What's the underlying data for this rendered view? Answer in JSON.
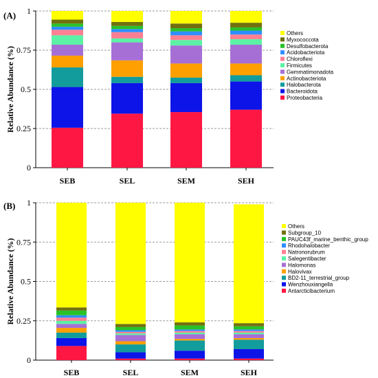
{
  "chart_data": [
    {
      "type": "bar",
      "stacked": true,
      "panel_label": "(A)",
      "ylabel": "Relative Abundance (%)",
      "categories": [
        "SEB",
        "SEL",
        "SEM",
        "SEH"
      ],
      "ylim": [
        0,
        1
      ],
      "yticks": [
        "0",
        "0.25",
        "0.5",
        "0.75",
        "1"
      ],
      "ytick_values": [
        0,
        0.25,
        0.5,
        0.75,
        1
      ],
      "grid": "dashed horizontal",
      "legend_position": "right",
      "series": [
        {
          "name": "Proteobacteria",
          "color": "#FF1744",
          "values": [
            0.255,
            0.345,
            0.355,
            0.37
          ]
        },
        {
          "name": "Bacteroidota",
          "color": "#0D14E8",
          "values": [
            0.26,
            0.195,
            0.185,
            0.18
          ]
        },
        {
          "name": "Halobacterota",
          "color": "#129C9C",
          "values": [
            0.125,
            0.04,
            0.035,
            0.04
          ]
        },
        {
          "name": "Actinobacteriota",
          "color": "#FF9F00",
          "values": [
            0.075,
            0.105,
            0.09,
            0.075
          ]
        },
        {
          "name": "Gemmatimonadota",
          "color": "#A66FD6",
          "values": [
            0.07,
            0.115,
            0.115,
            0.12
          ]
        },
        {
          "name": "Firmicutes",
          "color": "#5CF2A5",
          "values": [
            0.06,
            0.025,
            0.035,
            0.035
          ]
        },
        {
          "name": "Chloroflexi",
          "color": "#FF7F93",
          "values": [
            0.035,
            0.04,
            0.03,
            0.03
          ]
        },
        {
          "name": "Acidobacteriota",
          "color": "#2E8EFF",
          "values": [
            0.02,
            0.02,
            0.025,
            0.025
          ]
        },
        {
          "name": "Desulfobacterota",
          "color": "#28C228",
          "values": [
            0.02,
            0.02,
            0.02,
            0.02
          ]
        },
        {
          "name": "Myxococcota",
          "color": "#707010",
          "values": [
            0.025,
            0.025,
            0.03,
            0.03
          ]
        },
        {
          "name": "Others",
          "color": "#FFFF00",
          "values": [
            0.055,
            0.07,
            0.08,
            0.075
          ]
        }
      ]
    },
    {
      "type": "bar",
      "stacked": true,
      "panel_label": "(B)",
      "ylabel": "Relative Abundance (%)",
      "categories": [
        "SEB",
        "SEL",
        "SEM",
        "SEH"
      ],
      "ylim": [
        0,
        1
      ],
      "yticks": [
        "0",
        "0.25",
        "0.5",
        "0.75",
        "1"
      ],
      "ytick_values": [
        0,
        0.25,
        0.5,
        0.75,
        1
      ],
      "grid": "dashed horizontal",
      "legend_position": "right",
      "series": [
        {
          "name": "Antarcticibacterium",
          "color": "#FF1744",
          "values": [
            0.09,
            0.01,
            0.01,
            0.01
          ]
        },
        {
          "name": "Wenzhouxiangella",
          "color": "#0D14E8",
          "values": [
            0.05,
            0.04,
            0.05,
            0.06
          ]
        },
        {
          "name": "BD2-11_terrestrial_group",
          "color": "#129C9C",
          "values": [
            0.035,
            0.05,
            0.065,
            0.06
          ]
        },
        {
          "name": "Halovivax",
          "color": "#FF9F00",
          "values": [
            0.03,
            0.02,
            0.01,
            0.01
          ]
        },
        {
          "name": "Halomonas",
          "color": "#A66FD6",
          "values": [
            0.025,
            0.04,
            0.03,
            0.025
          ]
        },
        {
          "name": "Salegentibacter",
          "color": "#5CF2A5",
          "values": [
            0.02,
            0.01,
            0.01,
            0.01
          ]
        },
        {
          "name": "Natronorubrum",
          "color": "#FF7F93",
          "values": [
            0.02,
            0.01,
            0.01,
            0.01
          ]
        },
        {
          "name": "Rhodohalobacter",
          "color": "#2E8EFF",
          "values": [
            0.015,
            0.01,
            0.01,
            0.01
          ]
        },
        {
          "name": "PAUC43f_marine_benthic_group",
          "color": "#28C228",
          "values": [
            0.03,
            0.02,
            0.025,
            0.02
          ]
        },
        {
          "name": "Subgroup_10",
          "color": "#707010",
          "values": [
            0.02,
            0.02,
            0.02,
            0.02
          ]
        },
        {
          "name": "Others",
          "color": "#FFFF00",
          "values": [
            0.665,
            0.77,
            0.76,
            0.755
          ]
        }
      ]
    }
  ]
}
